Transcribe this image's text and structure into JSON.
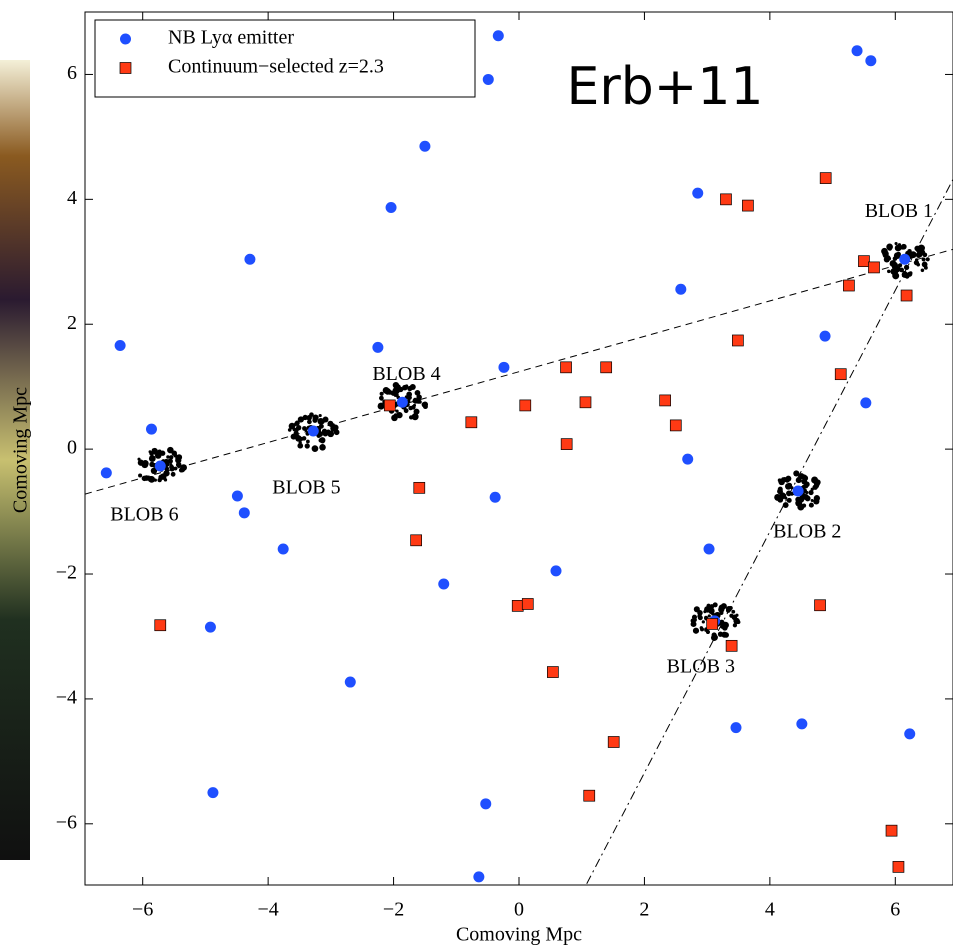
{
  "chart_data": {
    "type": "scatter",
    "title": "Erb+11",
    "xlabel": "Comoving Mpc",
    "ylabel": "Comoving Mpc",
    "xlim": [
      -6.92,
      6.92
    ],
    "ylim": [
      -6.98,
      7.0
    ],
    "xticks": [
      {
        "value": -6,
        "label": "−6"
      },
      {
        "value": -4,
        "label": "−4"
      },
      {
        "value": -2,
        "label": "−2"
      },
      0,
      2,
      4,
      6
    ],
    "yticks": [
      {
        "value": -6,
        "label": "−6"
      },
      {
        "value": -4,
        "label": "−4"
      },
      {
        "value": -2,
        "label": "−2"
      },
      0,
      2,
      4,
      6
    ],
    "legend": "upper left",
    "series": [
      {
        "name": "NB Lyα emitter",
        "color": "#1f4fff",
        "marker": "circle",
        "x": [
          -0.33,
          -0.49,
          5.39,
          5.61,
          -1.5,
          -2.04,
          2.85,
          -4.29,
          2.58,
          -6.36,
          -2.25,
          -0.24,
          4.88,
          5.53,
          -5.86,
          -6.58,
          -4.49,
          -4.38,
          -0.38,
          2.69,
          -3.76,
          0.59,
          3.03,
          -1.2,
          -4.92,
          -2.69,
          3.46,
          4.51,
          6.23,
          -4.88,
          -0.53,
          -0.64,
          6.15,
          4.45,
          3.12,
          -1.86,
          -3.28,
          -5.72
        ],
        "y": [
          6.62,
          5.92,
          6.38,
          6.22,
          4.85,
          3.87,
          4.1,
          3.04,
          2.56,
          1.66,
          1.63,
          1.31,
          1.81,
          0.74,
          0.32,
          -0.38,
          -0.75,
          -1.02,
          -0.77,
          -0.16,
          -1.6,
          -1.95,
          -1.6,
          -2.16,
          -2.85,
          -3.73,
          -4.46,
          -4.4,
          -4.56,
          -5.5,
          -5.68,
          -6.85,
          3.04,
          -0.67,
          -2.75,
          0.75,
          0.29,
          -0.27
        ]
      },
      {
        "name": "Continuum−selected z=2.3",
        "color": "#ff3a14",
        "marker": "square",
        "x": [
          4.89,
          3.3,
          3.65,
          5.5,
          5.66,
          5.26,
          6.18,
          3.49,
          0.75,
          1.39,
          5.13,
          1.06,
          2.33,
          0.1,
          -2.06,
          -0.76,
          2.5,
          0.76,
          -1.59,
          -1.64,
          -0.02,
          0.14,
          4.8,
          -5.72,
          3.08,
          3.39,
          0.54,
          1.51,
          1.12,
          5.94,
          6.05
        ],
        "y": [
          4.34,
          4.0,
          3.9,
          3.01,
          2.91,
          2.62,
          2.46,
          1.74,
          1.31,
          1.31,
          1.2,
          0.75,
          0.78,
          0.7,
          0.7,
          0.43,
          0.38,
          0.08,
          -0.62,
          -1.46,
          -2.51,
          -2.48,
          -2.5,
          -2.82,
          -2.8,
          -3.15,
          -3.57,
          -4.69,
          -5.55,
          -6.11,
          -6.69
        ]
      }
    ],
    "blobs": [
      {
        "label": "BLOB 1",
        "x": 6.15,
        "y": 3.04
      },
      {
        "label": "BLOB 2",
        "x": 4.45,
        "y": -0.67
      },
      {
        "label": "BLOB 3",
        "x": 3.12,
        "y": -2.75
      },
      {
        "label": "BLOB 4",
        "x": -1.86,
        "y": 0.75
      },
      {
        "label": "BLOB 5",
        "x": -3.28,
        "y": 0.29
      },
      {
        "label": "BLOB 6",
        "x": -5.72,
        "y": -0.27
      }
    ],
    "lines": [
      {
        "style": "dashed",
        "x": [
          -6.92,
          6.92
        ],
        "y": [
          -0.72,
          3.2
        ]
      },
      {
        "style": "dashdot",
        "x": [
          1.08,
          6.92
        ],
        "y": [
          -6.96,
          4.32
        ]
      }
    ]
  }
}
